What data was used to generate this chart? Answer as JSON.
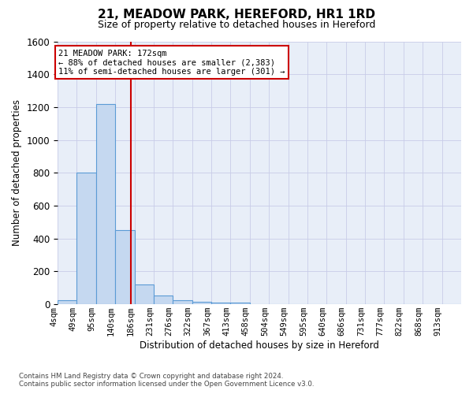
{
  "title": "21, MEADOW PARK, HEREFORD, HR1 1RD",
  "subtitle": "Size of property relative to detached houses in Hereford",
  "xlabel": "Distribution of detached houses by size in Hereford",
  "ylabel": "Number of detached properties",
  "footer_line1": "Contains HM Land Registry data © Crown copyright and database right 2024.",
  "footer_line2": "Contains public sector information licensed under the Open Government Licence v3.0.",
  "annotation_line1": "21 MEADOW PARK: 172sqm",
  "annotation_line2": "← 88% of detached houses are smaller (2,383)",
  "annotation_line3": "11% of semi-detached houses are larger (301) →",
  "vline_x_index": 3.8,
  "ylim": [
    0,
    1600
  ],
  "yticks": [
    0,
    200,
    400,
    600,
    800,
    1000,
    1200,
    1400,
    1600
  ],
  "bar_color": "#c5d8f0",
  "bar_edge_color": "#5b9bd5",
  "vline_color": "#cc0000",
  "annotation_box_edgecolor": "#cc0000",
  "grid_color": "#c8cce8",
  "bg_color": "#e8eef8",
  "bin_labels": [
    "4sqm",
    "49sqm",
    "95sqm",
    "140sqm",
    "186sqm",
    "231sqm",
    "276sqm",
    "322sqm",
    "367sqm",
    "413sqm",
    "458sqm",
    "504sqm",
    "549sqm",
    "595sqm",
    "640sqm",
    "686sqm",
    "731sqm",
    "777sqm",
    "822sqm",
    "868sqm",
    "913sqm"
  ],
  "bar_heights": [
    25,
    800,
    1220,
    450,
    120,
    55,
    25,
    15,
    10,
    8,
    0,
    0,
    0,
    0,
    0,
    0,
    0,
    0,
    0,
    0,
    0
  ],
  "n_bins": 21,
  "title_fontsize": 11,
  "subtitle_fontsize": 9,
  "ylabel_fontsize": 8.5,
  "xlabel_fontsize": 8.5,
  "ytick_fontsize": 8.5,
  "xtick_fontsize": 7.5
}
